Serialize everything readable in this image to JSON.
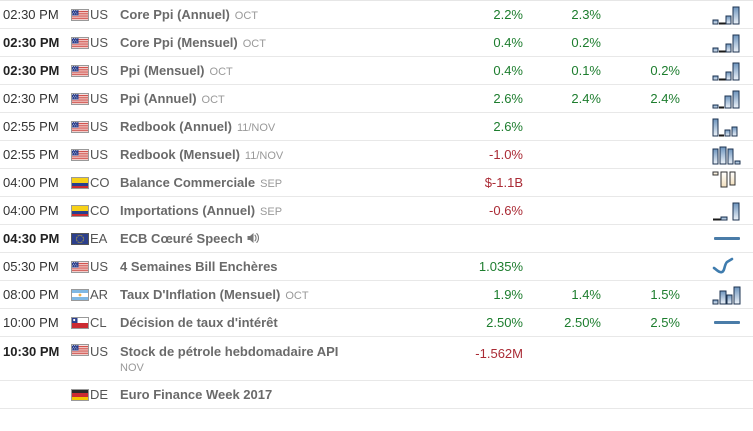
{
  "table": {
    "columns": [
      "time",
      "country",
      "event",
      "actual",
      "forecast",
      "previous",
      "chart"
    ],
    "colors": {
      "green": "#1d7d2e",
      "red": "#aa2b35",
      "event_text": "#6a6a6a",
      "time_text": "#333333",
      "separator": "#e8e8e8",
      "icon_blue": "#4a7ca8"
    },
    "rows": [
      {
        "time": "02:30 PM",
        "time_bold": false,
        "country": "US",
        "flag": "us",
        "event": "Core Ppi (Annuel)",
        "period": "OCT",
        "period_break": false,
        "speech": false,
        "values": [
          {
            "text": "2.2%",
            "color": "green"
          },
          {
            "text": "2.3%",
            "color": "green"
          },
          {
            "text": "",
            "color": ""
          }
        ],
        "icon": "bars-asc"
      },
      {
        "time": "02:30 PM",
        "time_bold": true,
        "country": "US",
        "flag": "us",
        "event": "Core Ppi (Mensuel)",
        "period": "OCT",
        "period_break": false,
        "speech": false,
        "values": [
          {
            "text": "0.4%",
            "color": "green"
          },
          {
            "text": "0.2%",
            "color": "green"
          },
          {
            "text": "",
            "color": ""
          }
        ],
        "icon": "bars-asc"
      },
      {
        "time": "02:30 PM",
        "time_bold": true,
        "country": "US",
        "flag": "us",
        "event": "Ppi (Mensuel)",
        "period": "OCT",
        "period_break": false,
        "speech": false,
        "values": [
          {
            "text": "0.4%",
            "color": "green"
          },
          {
            "text": "0.1%",
            "color": "green"
          },
          {
            "text": "0.2%",
            "color": "green"
          }
        ],
        "icon": "bars-asc"
      },
      {
        "time": "02:30 PM",
        "time_bold": false,
        "country": "US",
        "flag": "us",
        "event": "Ppi (Annuel)",
        "period": "OCT",
        "period_break": false,
        "speech": false,
        "values": [
          {
            "text": "2.6%",
            "color": "green"
          },
          {
            "text": "2.4%",
            "color": "green"
          },
          {
            "text": "2.4%",
            "color": "green"
          }
        ],
        "icon": "bars-asc2"
      },
      {
        "time": "02:55 PM",
        "time_bold": false,
        "country": "US",
        "flag": "us",
        "event": "Redbook (Annuel)",
        "period": "11/NOV",
        "period_break": false,
        "speech": false,
        "values": [
          {
            "text": "2.6%",
            "color": "green"
          },
          {
            "text": "",
            "color": ""
          },
          {
            "text": "",
            "color": ""
          }
        ],
        "icon": "bars-first-tall"
      },
      {
        "time": "02:55 PM",
        "time_bold": false,
        "country": "US",
        "flag": "us",
        "event": "Redbook (Mensuel)",
        "period": "11/NOV",
        "period_break": false,
        "speech": false,
        "values": [
          {
            "text": "-1.0%",
            "color": "red"
          },
          {
            "text": "",
            "color": ""
          },
          {
            "text": "",
            "color": ""
          }
        ],
        "icon": "bars-three-tall"
      },
      {
        "time": "04:00 PM",
        "time_bold": false,
        "country": "CO",
        "flag": "co",
        "event": "Balance Commerciale",
        "period": "SEP",
        "period_break": false,
        "speech": false,
        "values": [
          {
            "text": "$-1.1B",
            "color": "red"
          },
          {
            "text": "",
            "color": ""
          },
          {
            "text": "",
            "color": ""
          }
        ],
        "icon": "bars-hanging"
      },
      {
        "time": "04:00 PM",
        "time_bold": false,
        "country": "CO",
        "flag": "co",
        "event": "Importations (Annuel)",
        "period": "SEP",
        "period_break": false,
        "speech": false,
        "values": [
          {
            "text": "-0.6%",
            "color": "red"
          },
          {
            "text": "",
            "color": ""
          },
          {
            "text": "",
            "color": ""
          }
        ],
        "icon": "bars-last-tall"
      },
      {
        "time": "04:30 PM",
        "time_bold": true,
        "country": "EA",
        "flag": "eu",
        "event": "ECB Cœuré Speech",
        "period": "",
        "period_break": false,
        "speech": true,
        "values": [
          {
            "text": "",
            "color": ""
          },
          {
            "text": "",
            "color": ""
          },
          {
            "text": "",
            "color": ""
          }
        ],
        "icon": "hline"
      },
      {
        "time": "05:30 PM",
        "time_bold": false,
        "country": "US",
        "flag": "us",
        "event": "4 Semaines Bill Enchères",
        "period": "",
        "period_break": false,
        "speech": false,
        "values": [
          {
            "text": "1.035%",
            "color": "green"
          },
          {
            "text": "",
            "color": ""
          },
          {
            "text": "",
            "color": ""
          }
        ],
        "icon": "curve"
      },
      {
        "time": "08:00 PM",
        "time_bold": false,
        "country": "AR",
        "flag": "ar",
        "event": "Taux D'Inflation (Mensuel)",
        "period": "OCT",
        "period_break": false,
        "speech": false,
        "values": [
          {
            "text": "1.9%",
            "color": "green"
          },
          {
            "text": "1.4%",
            "color": "green"
          },
          {
            "text": "1.5%",
            "color": "green"
          }
        ],
        "icon": "bars-mixed"
      },
      {
        "time": "10:00 PM",
        "time_bold": false,
        "country": "CL",
        "flag": "cl",
        "event": "Décision de taux d'intérêt",
        "period": "",
        "period_break": false,
        "speech": false,
        "values": [
          {
            "text": "2.50%",
            "color": "green"
          },
          {
            "text": "2.50%",
            "color": "green"
          },
          {
            "text": "2.5%",
            "color": "green"
          }
        ],
        "icon": "hline"
      },
      {
        "time": "10:30 PM",
        "time_bold": true,
        "country": "US",
        "flag": "us",
        "event": "Stock de pétrole hebdomadaire API",
        "period": "NOV",
        "period_break": true,
        "speech": false,
        "values": [
          {
            "text": "-1.562M",
            "color": "red"
          },
          {
            "text": "",
            "color": ""
          },
          {
            "text": "",
            "color": ""
          }
        ],
        "icon": "none"
      },
      {
        "time": "",
        "time_bold": false,
        "country": "DE",
        "flag": "de",
        "event": "Euro Finance Week 2017",
        "period": "",
        "period_break": false,
        "speech": false,
        "values": [
          {
            "text": "",
            "color": ""
          },
          {
            "text": "",
            "color": ""
          },
          {
            "text": "",
            "color": ""
          }
        ],
        "icon": "none"
      }
    ]
  }
}
